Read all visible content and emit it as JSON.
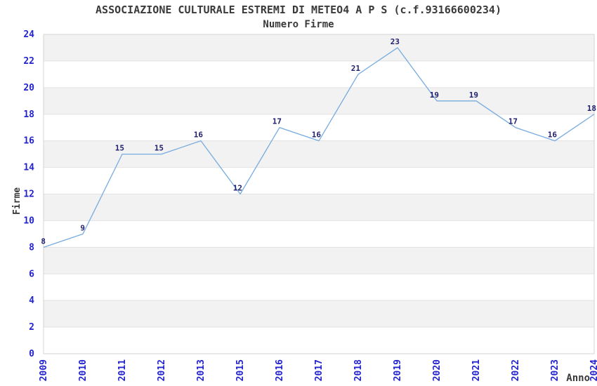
{
  "chart_data": {
    "type": "line",
    "title": "ASSOCIAZIONE CULTURALE ESTREMI DI METEO4 A P S (c.f.93166600234)",
    "subtitle": "Numero Firme",
    "xlabel": "Anno",
    "ylabel": "Firme",
    "categories": [
      "2009",
      "2010",
      "2011",
      "2012",
      "2013",
      "2015",
      "2016",
      "2017",
      "2018",
      "2019",
      "2020",
      "2021",
      "2022",
      "2023",
      "2024"
    ],
    "values": [
      8,
      9,
      15,
      15,
      16,
      12,
      17,
      16,
      21,
      23,
      19,
      19,
      17,
      16,
      18
    ],
    "ylim": [
      0,
      24
    ],
    "ytick_step": 2,
    "grid": true,
    "legend": "none",
    "point_labels_visible": true,
    "x_tick_rotation": 90,
    "colors": {
      "line": "#76abdf",
      "tick_label": "#2323cc",
      "point_label": "#20206e",
      "band": "#f2f2f2",
      "gridline": "#e3e3e3",
      "border": "#d4d4d4",
      "text": "#3a3a3a",
      "background": "#ffffff"
    }
  }
}
